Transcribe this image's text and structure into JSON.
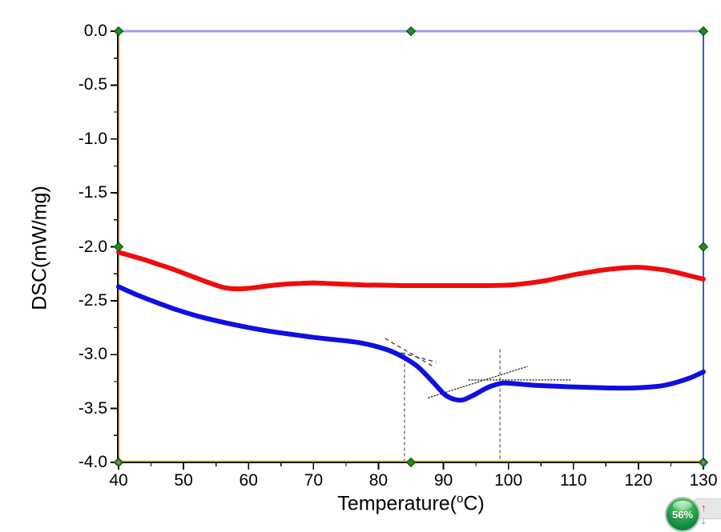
{
  "chart_data": {
    "type": "line",
    "title": "",
    "xlabel_prefix": "Temperature(",
    "xlabel_degree": "o",
    "xlabel_suffix": "C)",
    "ylabel": "DSC(mW/mg)",
    "xlim": [
      40,
      130
    ],
    "ylim": [
      -4.0,
      0.0
    ],
    "x_ticks": [
      40,
      50,
      60,
      70,
      80,
      90,
      100,
      110,
      120,
      130
    ],
    "x_tick_labels": [
      "40",
      "50",
      "60",
      "70",
      "80",
      "90",
      "100",
      "110",
      "120",
      "130"
    ],
    "x_minor_step": 5,
    "y_ticks": [
      0.0,
      -0.5,
      -1.0,
      -1.5,
      -2.0,
      -2.5,
      -3.0,
      -3.5,
      -4.0
    ],
    "y_tick_labels": [
      "0.0",
      "-0.5",
      "-1.0",
      "-1.5",
      "-2.0",
      "-2.5",
      "-3.0",
      "-3.5",
      "-4.0"
    ],
    "y_minor_step": 0.25,
    "grid": false,
    "legend": "none",
    "series": [
      {
        "name": "red-dsc-curve",
        "color": "#f00c0c",
        "width": 6,
        "points": [
          [
            40,
            -2.05
          ],
          [
            42,
            -2.085
          ],
          [
            44,
            -2.12
          ],
          [
            46,
            -2.16
          ],
          [
            48,
            -2.2
          ],
          [
            50,
            -2.245
          ],
          [
            52,
            -2.29
          ],
          [
            54,
            -2.335
          ],
          [
            56,
            -2.375
          ],
          [
            58,
            -2.39
          ],
          [
            60,
            -2.385
          ],
          [
            62,
            -2.37
          ],
          [
            64,
            -2.355
          ],
          [
            66,
            -2.345
          ],
          [
            68,
            -2.34
          ],
          [
            70,
            -2.335
          ],
          [
            72,
            -2.34
          ],
          [
            74,
            -2.345
          ],
          [
            76,
            -2.35
          ],
          [
            78,
            -2.355
          ],
          [
            80,
            -2.355
          ],
          [
            84,
            -2.36
          ],
          [
            88,
            -2.36
          ],
          [
            92,
            -2.36
          ],
          [
            96,
            -2.36
          ],
          [
            100,
            -2.355
          ],
          [
            102,
            -2.345
          ],
          [
            104,
            -2.33
          ],
          [
            106,
            -2.31
          ],
          [
            108,
            -2.285
          ],
          [
            110,
            -2.26
          ],
          [
            112,
            -2.24
          ],
          [
            114,
            -2.22
          ],
          [
            116,
            -2.205
          ],
          [
            118,
            -2.195
          ],
          [
            120,
            -2.19
          ],
          [
            122,
            -2.2
          ],
          [
            124,
            -2.215
          ],
          [
            126,
            -2.24
          ],
          [
            128,
            -2.27
          ],
          [
            130,
            -2.3
          ]
        ]
      },
      {
        "name": "blue-dsc-curve",
        "color": "#0f0fe0",
        "width": 6,
        "points": [
          [
            40,
            -2.37
          ],
          [
            43,
            -2.45
          ],
          [
            46,
            -2.52
          ],
          [
            49,
            -2.585
          ],
          [
            52,
            -2.64
          ],
          [
            55,
            -2.685
          ],
          [
            58,
            -2.725
          ],
          [
            61,
            -2.76
          ],
          [
            64,
            -2.79
          ],
          [
            67,
            -2.815
          ],
          [
            70,
            -2.84
          ],
          [
            73,
            -2.86
          ],
          [
            76,
            -2.88
          ],
          [
            78,
            -2.9
          ],
          [
            80,
            -2.93
          ],
          [
            82,
            -2.97
          ],
          [
            84,
            -3.03
          ],
          [
            86,
            -3.11
          ],
          [
            88,
            -3.23
          ],
          [
            90,
            -3.36
          ],
          [
            91,
            -3.4
          ],
          [
            92,
            -3.42
          ],
          [
            93,
            -3.42
          ],
          [
            94,
            -3.395
          ],
          [
            95,
            -3.365
          ],
          [
            96,
            -3.33
          ],
          [
            97,
            -3.3
          ],
          [
            98,
            -3.28
          ],
          [
            99,
            -3.265
          ],
          [
            100,
            -3.265
          ],
          [
            102,
            -3.275
          ],
          [
            104,
            -3.285
          ],
          [
            106,
            -3.29
          ],
          [
            108,
            -3.295
          ],
          [
            110,
            -3.3
          ],
          [
            113,
            -3.305
          ],
          [
            116,
            -3.31
          ],
          [
            119,
            -3.31
          ],
          [
            122,
            -3.3
          ],
          [
            124,
            -3.285
          ],
          [
            126,
            -3.255
          ],
          [
            128,
            -3.215
          ],
          [
            130,
            -3.16
          ]
        ]
      }
    ],
    "annotations": {
      "vertical_dashed_lines": [
        {
          "x": 84.0,
          "y_from": -2.98,
          "y_to": -3.985
        },
        {
          "x": 98.7,
          "y_from": -2.95,
          "y_to": -3.98
        }
      ],
      "tangent_dashed_lines": [
        {
          "x1": 77.0,
          "y1": -2.88,
          "x2": 88.9,
          "y2": -3.07
        },
        {
          "x1": 81.0,
          "y1": -2.85,
          "x2": 88.7,
          "y2": -3.12
        }
      ],
      "dotted_lines": [
        {
          "x1": 93.9,
          "y1": -3.235,
          "x2": 109.5,
          "y2": -3.235
        },
        {
          "x1": 87.7,
          "y1": -3.4,
          "x2": 102.9,
          "y2": -3.11
        }
      ]
    },
    "frame": {
      "top_border_color": "#9d9df2",
      "right_border_color": "#3a57d8",
      "axis_color": "#000000",
      "axis_highlight_color": "#ffaa00",
      "tick_color": "#000000",
      "handle_fill": "#1e8c1e",
      "handle_border": "#0a4a0a",
      "handle_accent": "#f060c0"
    }
  },
  "overlay": {
    "zoom_badge": {
      "value": "56%",
      "color": "#149240"
    },
    "icons": {
      "up_arrow": "↑",
      "down_arrow": "↓"
    }
  }
}
